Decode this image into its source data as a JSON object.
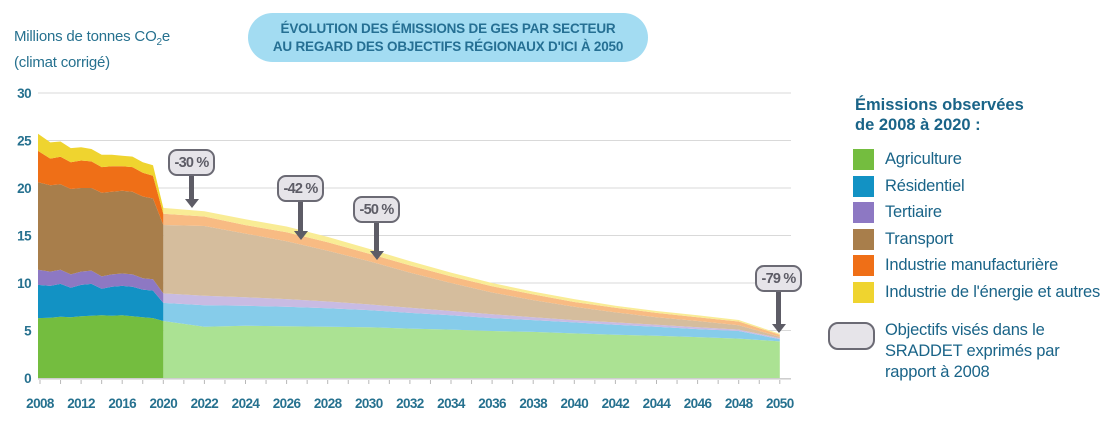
{
  "colors": {
    "title_bg": "#a3dcf2",
    "title_ink": "#256f93",
    "axis_ink": "#26718f",
    "legend_ink": "#1a6488",
    "grid": "#d9d9d9",
    "axis_line": "#c7c7c7",
    "tick": "#b8b8b8",
    "badge_bg": "#e6e4e9",
    "badge_border": "#6b6a74",
    "badge_ink": "#5d5c66"
  },
  "y_axis_title": {
    "prefix": "Millions de tonnes CO",
    "sub": "2",
    "suffix": "e",
    "line2": "(climat corrigé)"
  },
  "legend": {
    "heading_lines": [
      "Émissions observées",
      "de 2008 à 2020 :"
    ],
    "objective_lines": [
      "Objectifs visés dans le",
      "SRADDET exprimés par",
      "rapport à 2008"
    ]
  },
  "chart_data": {
    "type": "area",
    "stacked": true,
    "title_lines": [
      "ÉVOLUTION DES ÉMISSIONS DE GES PAR SECTEUR",
      "AU REGARD DES OBJECTIFS RÉGIONAUX D'ICI À 2050"
    ],
    "ylabel": "Millions de tonnes CO₂e (climat corrigé)",
    "ylim": [
      0,
      30
    ],
    "y_ticks": [
      0,
      5,
      10,
      15,
      20,
      25,
      30
    ],
    "x_ticks": [
      2008,
      2012,
      2016,
      2020,
      2022,
      2024,
      2026,
      2028,
      2030,
      2032,
      2034,
      2036,
      2038,
      2040,
      2042,
      2044,
      2046,
      2048,
      2050
    ],
    "observed_years": [
      2008,
      2009,
      2010,
      2011,
      2012,
      2013,
      2014,
      2015,
      2016,
      2017,
      2018,
      2019,
      2020
    ],
    "projection_years": [
      2020,
      2022,
      2024,
      2026,
      2028,
      2030,
      2032,
      2034,
      2036,
      2038,
      2040,
      2042,
      2044,
      2046,
      2048,
      2050
    ],
    "series": [
      {
        "id": "agriculture",
        "name": "Agriculture",
        "color": "#74bd3f",
        "color_light": "#abe293",
        "observed": [
          6.3,
          6.35,
          6.45,
          6.4,
          6.5,
          6.55,
          6.6,
          6.55,
          6.6,
          6.5,
          6.4,
          6.3,
          6.0
        ],
        "projection": [
          6.0,
          5.4,
          5.5,
          5.45,
          5.4,
          5.35,
          5.2,
          5.1,
          4.95,
          4.85,
          4.7,
          4.55,
          4.45,
          4.3,
          4.15,
          3.85
        ]
      },
      {
        "id": "residentiel",
        "name": "Résidentiel",
        "color": "#1292c4",
        "color_light": "#86ccea",
        "observed": [
          3.5,
          3.35,
          3.45,
          3.1,
          3.3,
          3.35,
          2.8,
          3.05,
          3.1,
          3.1,
          2.9,
          2.9,
          1.9
        ],
        "projection": [
          1.9,
          2.25,
          2.1,
          2.05,
          1.95,
          1.8,
          1.65,
          1.5,
          1.35,
          1.25,
          1.15,
          1.05,
          0.95,
          0.85,
          0.8,
          0.25
        ]
      },
      {
        "id": "tertiaire",
        "name": "Tertiaire",
        "color": "#8d78c3",
        "color_light": "#c8bbe3",
        "observed": [
          1.6,
          1.5,
          1.5,
          1.4,
          1.4,
          1.4,
          1.3,
          1.3,
          1.3,
          1.3,
          1.2,
          1.2,
          1.0
        ],
        "projection": [
          1.0,
          1.0,
          0.9,
          0.8,
          0.7,
          0.6,
          0.55,
          0.45,
          0.4,
          0.3,
          0.25,
          0.25,
          0.2,
          0.2,
          0.15,
          0.1
        ]
      },
      {
        "id": "transport",
        "name": "Transport",
        "color": "#a87e4b",
        "color_light": "#d5bd9d",
        "observed": [
          9.2,
          9.1,
          9.0,
          9.0,
          8.8,
          8.7,
          8.8,
          8.7,
          8.7,
          8.7,
          8.6,
          8.5,
          7.2
        ],
        "projection": [
          7.2,
          7.35,
          6.7,
          6.1,
          5.35,
          4.55,
          3.7,
          2.95,
          2.3,
          1.8,
          1.4,
          1.05,
          0.8,
          0.65,
          0.45,
          0.15
        ]
      },
      {
        "id": "industrie-manufacturiere",
        "name": "Industrie manufacturière",
        "color": "#ef6f17",
        "color_light": "#f8bb83",
        "observed": [
          3.3,
          2.8,
          2.9,
          2.8,
          2.9,
          2.8,
          2.7,
          2.7,
          2.6,
          2.6,
          2.5,
          2.4,
          1.2
        ],
        "projection": [
          1.2,
          1.0,
          0.9,
          0.95,
          0.9,
          0.8,
          0.75,
          0.7,
          0.65,
          0.6,
          0.5,
          0.5,
          0.45,
          0.4,
          0.4,
          0.2
        ]
      },
      {
        "id": "industrie-energie",
        "name": "Industrie de l'énergie et autres",
        "color": "#efd42f",
        "color_light": "#f9ec95",
        "observed": [
          1.8,
          1.7,
          1.6,
          1.5,
          1.4,
          1.3,
          1.3,
          1.2,
          1.1,
          1.1,
          1.1,
          1.1,
          0.6
        ],
        "projection": [
          0.6,
          0.55,
          0.6,
          0.6,
          0.55,
          0.5,
          0.45,
          0.4,
          0.35,
          0.3,
          0.3,
          0.2,
          0.2,
          0.2,
          0.15,
          0.1
        ]
      }
    ],
    "targets": [
      {
        "label": "-30 %",
        "year": 2021,
        "total_at_target": 17.8
      },
      {
        "label": "-42 %",
        "year": 2026,
        "total_at_target": 14.9
      },
      {
        "label": "-50 %",
        "year": 2030,
        "total_at_target": 12.4
      },
      {
        "label": "-79 %",
        "year": 2050,
        "total_at_target": 4.7
      }
    ]
  }
}
